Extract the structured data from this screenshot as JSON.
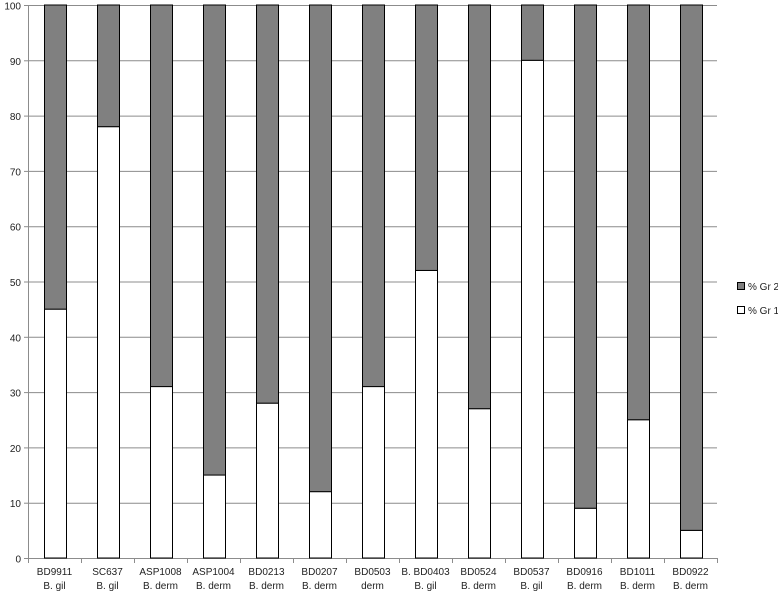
{
  "chart_data": {
    "type": "bar",
    "stacked": true,
    "title": "",
    "xlabel": "",
    "ylabel": "",
    "ylim": [
      0,
      100
    ],
    "yticks": [
      0,
      10,
      20,
      30,
      40,
      50,
      60,
      70,
      80,
      90,
      100
    ],
    "grid": true,
    "legend_position": "right",
    "categories": [
      {
        "line1": "BD9911",
        "line2": "B. gil"
      },
      {
        "line1": "SC637",
        "line2": "B. gil"
      },
      {
        "line1": "ASP1008",
        "line2": "B. derm"
      },
      {
        "line1": "ASP1004",
        "line2": "B. derm"
      },
      {
        "line1": "BD0213",
        "line2": "B. derm"
      },
      {
        "line1": "BD0207",
        "line2": "B. derm"
      },
      {
        "line1": "BD0503",
        "line2": "derm"
      },
      {
        "line1": "B. BD0403",
        "line2": "B. gil"
      },
      {
        "line1": "BD0524",
        "line2": "B. derm"
      },
      {
        "line1": "BD0537",
        "line2": "B. gil"
      },
      {
        "line1": "BD0916",
        "line2": "B. derm"
      },
      {
        "line1": "BD1011",
        "line2": "B. derm"
      },
      {
        "line1": "BD0922",
        "line2": "B. derm"
      }
    ],
    "series": [
      {
        "name": "% Gr 1",
        "color": "#ffffff",
        "values": [
          45,
          78,
          31,
          15,
          28,
          12,
          31,
          52,
          27,
          90,
          9,
          25,
          5
        ]
      },
      {
        "name": "% Gr 2",
        "color": "#808080",
        "values": [
          55,
          22,
          69,
          85,
          72,
          88,
          69,
          48,
          73,
          10,
          91,
          75,
          95
        ]
      }
    ],
    "legend": [
      {
        "name": "% Gr 2",
        "color": "#808080"
      },
      {
        "name": "% Gr 1",
        "color": "#ffffff"
      }
    ]
  }
}
